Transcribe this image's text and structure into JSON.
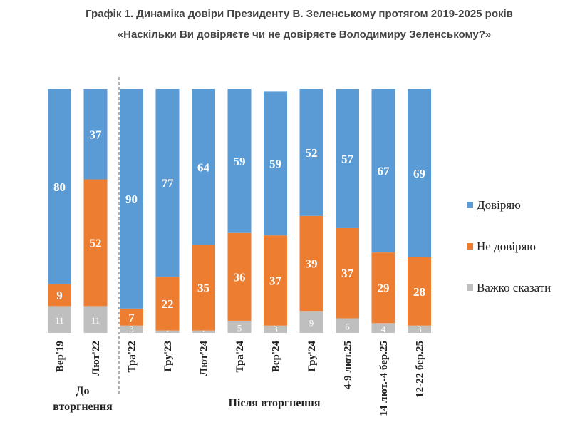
{
  "chart_data": {
    "type": "bar",
    "stacked": true,
    "percent": true,
    "title": "Графік 1. Динаміка довіри Президенту В. Зеленському протягом 2019-2025 років",
    "subtitle": "«Наскільки Ви довіряєте чи не довіряєте Володимиру Зеленському?»",
    "categories": [
      "Вер'19",
      "Лют'22",
      "Тра'22",
      "Гру'23",
      "Лют'24",
      "Тра'24",
      "Вер'24",
      "Гру'24",
      "4-9 лют.25",
      "14 лют.-4 бер.25",
      "12-22 бер.25"
    ],
    "series": [
      {
        "name": "Довіряю",
        "color": "#5b9bd5",
        "values": [
          80,
          37,
          90,
          77,
          64,
          59,
          59,
          52,
          57,
          67,
          69
        ]
      },
      {
        "name": "Не довіряю",
        "color": "#ed7d31",
        "values": [
          9,
          52,
          7,
          22,
          35,
          36,
          37,
          39,
          37,
          29,
          28
        ]
      },
      {
        "name": "Важко сказати",
        "color": "#bfbfbf",
        "values": [
          11,
          11,
          3,
          1,
          1,
          5,
          3,
          9,
          6,
          4,
          3
        ]
      }
    ],
    "groups": [
      {
        "label_lines": [
          "До",
          "вторгнення"
        ],
        "from": 0,
        "to": 1
      },
      {
        "label_lines": [
          "Після вторгнення"
        ],
        "from": 2,
        "to": 10
      }
    ],
    "legend_position": "right",
    "ylim": [
      0,
      100
    ]
  }
}
